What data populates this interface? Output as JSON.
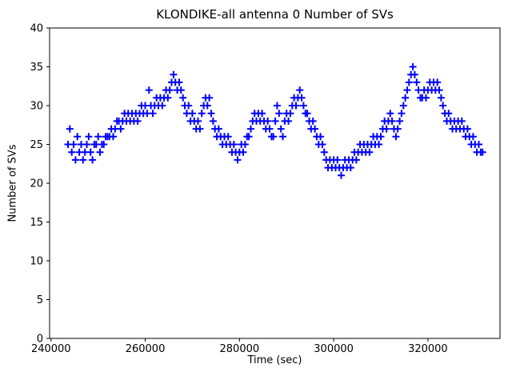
{
  "figure": {
    "background": "#ffffff",
    "axes_color": "#000000",
    "text_color": "#000000"
  },
  "chart_data": {
    "type": "scatter",
    "title": "KLONDIKE-all antenna 0 Number of SVs",
    "xlabel": "Time (sec)",
    "ylabel": "Number of SVs",
    "xlim": [
      239700,
      335300
    ],
    "ylim": [
      0,
      40
    ],
    "x_ticks": [
      240000,
      260000,
      280000,
      300000,
      320000
    ],
    "y_ticks": [
      0,
      5,
      10,
      15,
      20,
      25,
      30,
      35,
      40
    ],
    "grid": false,
    "legend_position": "none",
    "marker": "plus",
    "marker_color": "#0000ff",
    "series": [
      {
        "name": "Number of SVs",
        "t_start": 243600,
        "t_step": 400,
        "values": [
          25,
          27,
          24,
          25,
          23,
          26,
          24,
          25,
          23,
          24,
          25,
          26,
          24,
          23,
          25,
          25,
          26,
          24,
          25,
          25,
          26,
          26,
          26,
          27,
          26,
          27,
          28,
          28,
          27,
          28,
          29,
          28,
          29,
          28,
          29,
          28,
          29,
          28,
          29,
          30,
          29,
          30,
          29,
          32,
          30,
          29,
          30,
          31,
          30,
          31,
          30,
          31,
          32,
          31,
          32,
          33,
          34,
          33,
          32,
          33,
          32,
          31,
          30,
          29,
          30,
          28,
          29,
          28,
          27,
          28,
          27,
          29,
          30,
          31,
          30,
          31,
          29,
          28,
          27,
          26,
          27,
          26,
          25,
          26,
          25,
          26,
          25,
          24,
          25,
          24,
          23,
          24,
          25,
          24,
          25,
          26,
          26,
          27,
          28,
          29,
          28,
          29,
          28,
          29,
          28,
          27,
          28,
          27,
          26,
          26,
          28,
          30,
          29,
          27,
          26,
          28,
          29,
          28,
          29,
          30,
          31,
          30,
          31,
          32,
          31,
          30,
          29,
          29,
          28,
          27,
          28,
          27,
          26,
          25,
          26,
          25,
          24,
          23,
          22,
          23,
          22,
          23,
          22,
          23,
          22,
          21,
          22,
          23,
          22,
          23,
          22,
          23,
          24,
          23,
          24,
          25,
          24,
          25,
          24,
          25,
          24,
          25,
          26,
          25,
          26,
          25,
          26,
          27,
          28,
          27,
          28,
          29,
          28,
          27,
          26,
          27,
          28,
          29,
          30,
          31,
          32,
          33,
          34,
          35,
          34,
          33,
          32,
          31,
          31,
          32,
          31,
          32,
          33,
          32,
          33,
          32,
          33,
          32,
          31,
          30,
          29,
          28,
          29,
          28,
          27,
          28,
          27,
          28,
          27,
          28,
          27,
          26,
          27,
          26,
          25,
          26,
          25,
          24,
          25,
          24,
          24
        ]
      }
    ]
  }
}
